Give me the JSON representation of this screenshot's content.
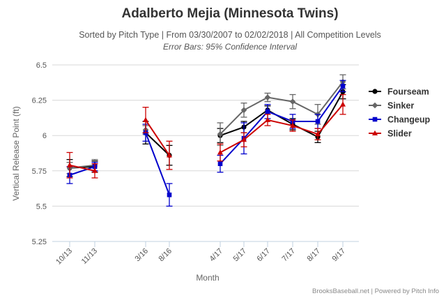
{
  "chart_data": {
    "type": "line",
    "title": "Adalberto Mejia (Minnesota Twins)",
    "subtitle": "Sorted by Pitch Type | From 03/30/2007 to 02/02/2018 | All Competition Levels",
    "subtitle2": "Error Bars: 95% Confidence Interval",
    "xlabel": "Month",
    "ylabel": "Vertical Release Point (ft)",
    "ylim": [
      5.25,
      6.5
    ],
    "yticks": [
      "6.5",
      "6.25",
      "6",
      "5.75",
      "5.5",
      "5.25"
    ],
    "categories": [
      "10/13",
      "11/13",
      "3/16",
      "8/16",
      "4/17",
      "5/17",
      "6/17",
      "7/17",
      "8/17",
      "9/17"
    ],
    "credits": "BrooksBaseball.net | Powered by Pitch Info",
    "series": [
      {
        "name": "Fourseam",
        "color": "#000000",
        "marker": "circle",
        "values": [
          5.77,
          5.78,
          6.02,
          5.86,
          6.0,
          6.06,
          6.18,
          6.08,
          5.99,
          6.31
        ],
        "err": [
          0.06,
          0.04,
          0.08,
          0.07,
          0.05,
          0.04,
          0.03,
          0.04,
          0.04,
          0.05
        ]
      },
      {
        "name": "Sinker",
        "color": "#666666",
        "marker": "diamond",
        "values": [
          5.77,
          5.79,
          6.04,
          null,
          6.01,
          6.18,
          6.27,
          6.24,
          6.15,
          6.38
        ],
        "err": [
          0.04,
          0.04,
          0.03,
          null,
          0.08,
          0.05,
          0.03,
          0.05,
          0.07,
          0.05
        ]
      },
      {
        "name": "Changeup",
        "color": "#0000cc",
        "marker": "square",
        "values": [
          5.72,
          5.78,
          6.02,
          5.58,
          5.8,
          5.98,
          6.17,
          6.1,
          6.1,
          6.35
        ],
        "err": [
          0.06,
          0.03,
          0.06,
          0.08,
          0.06,
          0.11,
          0.05,
          0.05,
          0.05,
          0.04
        ]
      },
      {
        "name": "Slider",
        "color": "#cc0000",
        "marker": "triangle",
        "values": [
          5.79,
          5.75,
          6.11,
          5.86,
          5.88,
          5.97,
          6.11,
          6.07,
          6.01,
          6.22
        ],
        "err": [
          0.09,
          0.05,
          0.09,
          0.1,
          0.06,
          0.05,
          0.04,
          0.04,
          0.04,
          0.07
        ]
      }
    ]
  }
}
